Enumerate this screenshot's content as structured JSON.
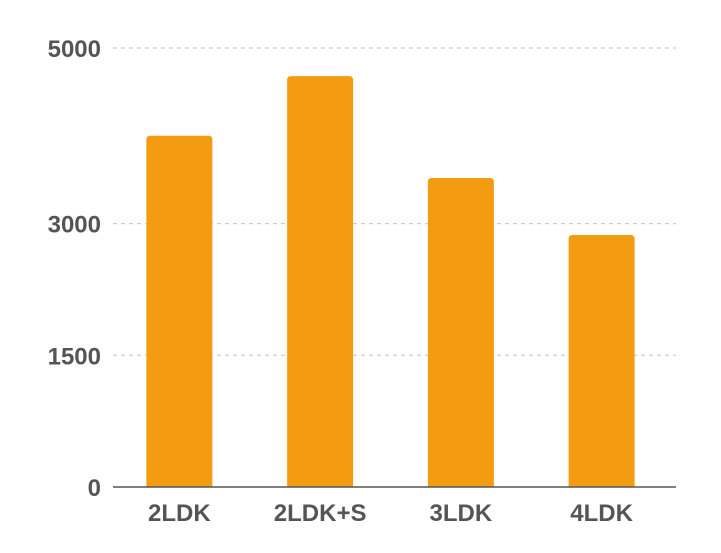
{
  "chart_data": {
    "type": "bar",
    "categories": [
      "2LDK",
      "2LDK+S",
      "3LDK",
      "4LDK"
    ],
    "values": [
      4000,
      4680,
      3520,
      2870
    ],
    "ylim": [
      0,
      5000
    ],
    "yticks": [
      0,
      1500,
      3000,
      5000
    ],
    "ytick_labels": [
      "0",
      "1500",
      "3000",
      "5000"
    ],
    "grid": true,
    "colors": {
      "bar": "#F39C12",
      "grid": "#cccccc",
      "axis": "#555555",
      "label": "#555555"
    }
  }
}
